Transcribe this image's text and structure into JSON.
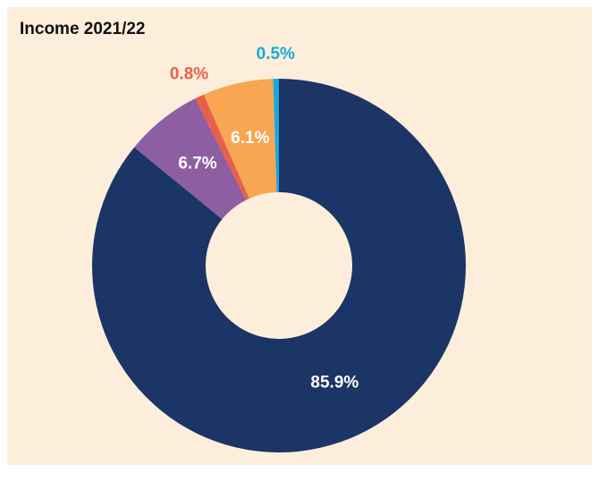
{
  "chart_data": {
    "type": "donut",
    "title": "Income 2021/22",
    "values": [
      85.9,
      6.7,
      0.8,
      6.1,
      0.5
    ],
    "value_labels": [
      "85.9%",
      "6.7%",
      "0.8%",
      "6.1%",
      "0.5%"
    ],
    "colors": [
      "#1b3566",
      "#8d5ea1",
      "#e8604c",
      "#f8a652",
      "#18a8de"
    ]
  }
}
